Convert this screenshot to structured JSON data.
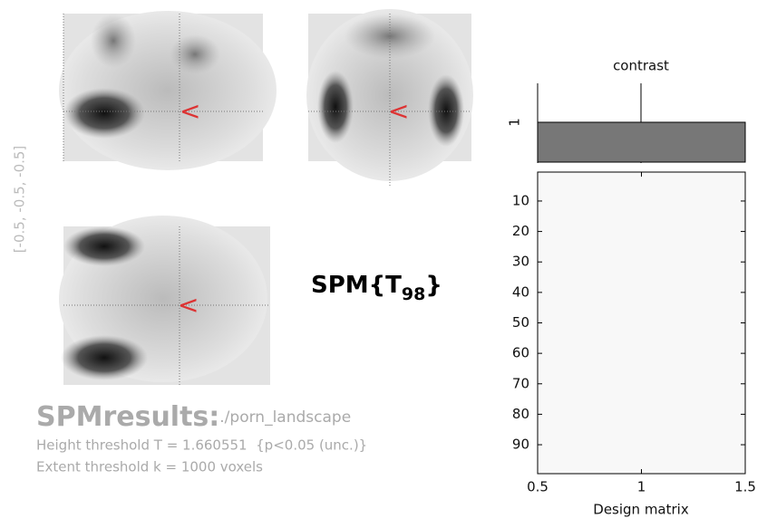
{
  "glass_brain": {
    "coords": "[-0.5, -0.5, -0.5]",
    "stat_base": "SPM{T",
    "stat_sub": "98",
    "stat_close": "}"
  },
  "results": {
    "title": "SPMresults:",
    "path": "./porn_landscape",
    "height": "Height threshold T = 1.660551  {p<0.05 (unc.)}",
    "extent": "Extent threshold k = 1000 voxels"
  },
  "contrast": {
    "title": "contrast",
    "yticks": [
      1
    ]
  },
  "design_matrix": {
    "xlabel": "Design matrix",
    "xlim": [
      0.5,
      1.5
    ],
    "xticks": [
      0.5,
      1,
      1.5
    ],
    "ylim": [
      0.5,
      99.5
    ],
    "yticks": [
      10,
      20,
      30,
      40,
      50,
      60,
      70,
      80,
      90
    ]
  }
}
